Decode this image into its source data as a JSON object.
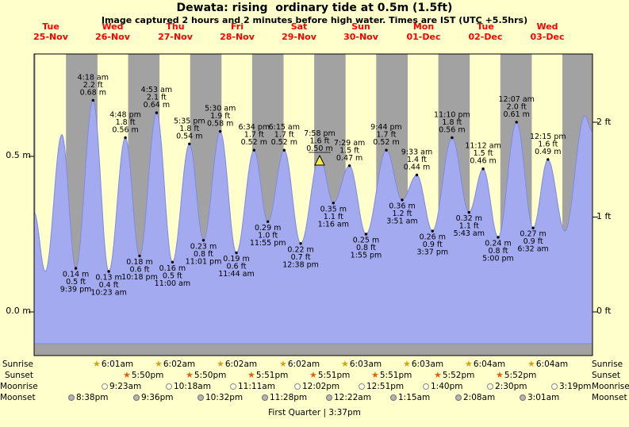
{
  "title": "Dewata: rising  ordinary tide at 0.5m (1.5ft)",
  "subtitle": "Image captured 2 hours and 2 minutes before high water. Times are IST (UTC +5.5hrs)",
  "axis": {
    "left": [
      "0.5 m",
      "0.0 m"
    ],
    "right": [
      "2 ft",
      "1 ft",
      "0 ft"
    ]
  },
  "colors": {
    "background": "#ffffcc",
    "night_band": "#a2a2a2",
    "day_band": "#ffffcc",
    "tide_fill": "#a3aaf0",
    "tide_stroke": "#7f8ae0",
    "date_label": "#ff0000",
    "current_marker": "#ffee33"
  },
  "chart_data": {
    "type": "area",
    "title": "Dewata: rising  ordinary tide at 0.5m (1.5ft)",
    "ylabel_left": "m",
    "ylabel_right": "ft",
    "ylim_m": [
      -0.1,
      0.93
    ],
    "y_ticks_m": [
      0.0,
      0.5
    ],
    "y_ticks_ft": [
      0,
      1,
      2
    ],
    "x_days": [
      {
        "weekday": "Tue",
        "date": "25-Nov"
      },
      {
        "weekday": "Wed",
        "date": "26-Nov"
      },
      {
        "weekday": "Thu",
        "date": "27-Nov"
      },
      {
        "weekday": "Fri",
        "date": "28-Nov"
      },
      {
        "weekday": "Sat",
        "date": "29-Nov"
      },
      {
        "weekday": "Sun",
        "date": "30-Nov"
      },
      {
        "weekday": "Mon",
        "date": "01-Dec"
      },
      {
        "weekday": "Tue",
        "date": "02-Dec"
      },
      {
        "weekday": "Wed",
        "date": "03-Dec"
      }
    ],
    "tide_events": [
      {
        "day": 0,
        "time": "5:30 am",
        "type": "start",
        "m": 0.32,
        "labeled": false
      },
      {
        "day": 0,
        "time": "9:50 am",
        "type": "low",
        "m": 0.13,
        "labeled": false
      },
      {
        "day": 0,
        "time": "4:15 pm",
        "type": "high",
        "m": 0.57,
        "labeled": false
      },
      {
        "day": 0,
        "time": "9:39 pm",
        "type": "low",
        "m": 0.14,
        "m_label": "0.14 m",
        "ft_label": "0.5 ft",
        "labeled": true
      },
      {
        "day": 1,
        "time": "4:18 am",
        "type": "high",
        "m": 0.68,
        "m_label": "0.68 m",
        "ft_label": "2.2 ft",
        "labeled": true
      },
      {
        "day": 1,
        "time": "10:23 am",
        "type": "low",
        "m": 0.13,
        "m_label": "0.13 m",
        "ft_label": "0.4 ft",
        "labeled": true
      },
      {
        "day": 1,
        "time": "4:48 pm",
        "type": "high",
        "m": 0.56,
        "m_label": "0.56 m",
        "ft_label": "1.8 ft",
        "labeled": true
      },
      {
        "day": 1,
        "time": "10:18 pm",
        "type": "low",
        "m": 0.18,
        "m_label": "0.18 m",
        "ft_label": "0.6 ft",
        "labeled": true
      },
      {
        "day": 2,
        "time": "4:53 am",
        "type": "high",
        "m": 0.64,
        "m_label": "0.64 m",
        "ft_label": "2.1 ft",
        "labeled": true
      },
      {
        "day": 2,
        "time": "11:00 am",
        "type": "low",
        "m": 0.16,
        "m_label": "0.16 m",
        "ft_label": "0.5 ft",
        "labeled": true
      },
      {
        "day": 2,
        "time": "5:35 pm",
        "type": "high",
        "m": 0.54,
        "m_label": "0.54 m",
        "ft_label": "1.8 ft",
        "labeled": true
      },
      {
        "day": 2,
        "time": "11:01 pm",
        "type": "low",
        "m": 0.23,
        "m_label": "0.23 m",
        "ft_label": "0.8 ft",
        "labeled": true
      },
      {
        "day": 3,
        "time": "5:30 am",
        "type": "high",
        "m": 0.58,
        "m_label": "0.58 m",
        "ft_label": "1.9 ft",
        "labeled": true
      },
      {
        "day": 3,
        "time": "11:44 am",
        "type": "low",
        "m": 0.19,
        "m_label": "0.19 m",
        "ft_label": "0.6 ft",
        "labeled": true
      },
      {
        "day": 3,
        "time": "6:34 pm",
        "type": "high",
        "m": 0.52,
        "m_label": "0.52 m",
        "ft_label": "1.7 ft",
        "labeled": true
      },
      {
        "day": 3,
        "time": "11:55 pm",
        "type": "low",
        "m": 0.29,
        "m_label": "0.29 m",
        "ft_label": "1.0 ft",
        "labeled": true
      },
      {
        "day": 4,
        "time": "6:15 am",
        "type": "high",
        "m": 0.52,
        "m_label": "0.52 m",
        "ft_label": "1.7 ft",
        "labeled": true
      },
      {
        "day": 4,
        "time": "12:38 pm",
        "type": "low",
        "m": 0.22,
        "m_label": "0.22 m",
        "ft_label": "0.7 ft",
        "labeled": true
      },
      {
        "day": 4,
        "time": "7:58 pm",
        "type": "high",
        "m": 0.5,
        "m_label": "0.50 m",
        "ft_label": "1.6 ft",
        "labeled": true,
        "current": true
      },
      {
        "day": 5,
        "time": "1:16 am",
        "type": "low",
        "m": 0.35,
        "m_label": "0.35 m",
        "ft_label": "1.1 ft",
        "labeled": true
      },
      {
        "day": 5,
        "time": "7:29 am",
        "type": "high",
        "m": 0.47,
        "m_label": "0.47 m",
        "ft_label": "1.5 ft",
        "labeled": true
      },
      {
        "day": 5,
        "time": "1:55 pm",
        "type": "low",
        "m": 0.25,
        "m_label": "0.25 m",
        "ft_label": "0.8 ft",
        "labeled": true
      },
      {
        "day": 5,
        "time": "9:44 pm",
        "type": "high",
        "m": 0.52,
        "m_label": "0.52 m",
        "ft_label": "1.7 ft",
        "labeled": true
      },
      {
        "day": 6,
        "time": "3:51 am",
        "type": "low",
        "m": 0.36,
        "m_label": "0.36 m",
        "ft_label": "1.2 ft",
        "labeled": true
      },
      {
        "day": 6,
        "time": "9:33 am",
        "type": "high",
        "m": 0.44,
        "m_label": "0.44 m",
        "ft_label": "1.4 ft",
        "labeled": true
      },
      {
        "day": 6,
        "time": "3:37 pm",
        "type": "low",
        "m": 0.26,
        "m_label": "0.26 m",
        "ft_label": "0.9 ft",
        "labeled": true
      },
      {
        "day": 6,
        "time": "11:10 pm",
        "type": "high",
        "m": 0.56,
        "m_label": "0.56 m",
        "ft_label": "1.8 ft",
        "labeled": true
      },
      {
        "day": 7,
        "time": "5:43 am",
        "type": "low",
        "m": 0.32,
        "m_label": "0.32 m",
        "ft_label": "1.1 ft",
        "labeled": true
      },
      {
        "day": 7,
        "time": "11:12 am",
        "type": "high",
        "m": 0.46,
        "m_label": "0.46 m",
        "ft_label": "1.5 ft",
        "labeled": true
      },
      {
        "day": 7,
        "time": "5:00 pm",
        "type": "low",
        "m": 0.24,
        "m_label": "0.24 m",
        "ft_label": "0.8 ft",
        "labeled": true
      },
      {
        "day": 8,
        "time": "12:07 am",
        "type": "high",
        "m": 0.61,
        "m_label": "0.61 m",
        "ft_label": "2.0 ft",
        "labeled": true
      },
      {
        "day": 8,
        "time": "6:32 am",
        "type": "low",
        "m": 0.27,
        "m_label": "0.27 m",
        "ft_label": "0.9 ft",
        "labeled": true
      },
      {
        "day": 8,
        "time": "12:15 pm",
        "type": "high",
        "m": 0.49,
        "m_label": "0.49 m",
        "ft_label": "1.6 ft",
        "labeled": true
      },
      {
        "day": 8,
        "time": "6:50 pm",
        "type": "low",
        "m": 0.26,
        "labeled": false
      },
      {
        "day": 9,
        "time": "2:30 am",
        "type": "high",
        "m": 0.63,
        "labeled": false
      },
      {
        "day": 9,
        "time": "5:30 am",
        "type": "end",
        "m": 0.58,
        "labeled": false
      }
    ],
    "current_marker": {
      "day": 4,
      "time": "7:58 pm",
      "m": 0.5
    }
  },
  "astro": {
    "row_labels": [
      "Sunrise",
      "Sunset",
      "Moonrise",
      "Moonset"
    ],
    "sunrise": [
      {
        "day": 1,
        "time": "6:01am"
      },
      {
        "day": 2,
        "time": "6:02am"
      },
      {
        "day": 3,
        "time": "6:02am"
      },
      {
        "day": 4,
        "time": "6:02am"
      },
      {
        "day": 5,
        "time": "6:03am"
      },
      {
        "day": 6,
        "time": "6:03am"
      },
      {
        "day": 7,
        "time": "6:04am"
      },
      {
        "day": 8,
        "time": "6:04am"
      }
    ],
    "sunset": [
      {
        "day": 1,
        "time": "5:50pm"
      },
      {
        "day": 2,
        "time": "5:50pm"
      },
      {
        "day": 3,
        "time": "5:51pm"
      },
      {
        "day": 4,
        "time": "5:51pm"
      },
      {
        "day": 5,
        "time": "5:51pm"
      },
      {
        "day": 6,
        "time": "5:52pm"
      },
      {
        "day": 7,
        "time": "5:52pm"
      }
    ],
    "moonrise": [
      {
        "day": 1,
        "time": "9:23am"
      },
      {
        "day": 2,
        "time": "10:18am"
      },
      {
        "day": 3,
        "time": "11:11am"
      },
      {
        "day": 4,
        "time": "12:02pm"
      },
      {
        "day": 5,
        "time": "12:51pm"
      },
      {
        "day": 6,
        "time": "1:40pm"
      },
      {
        "day": 7,
        "time": "2:30pm"
      },
      {
        "day": 8,
        "time": "3:19pm"
      }
    ],
    "moonset": [
      {
        "day": 0,
        "time": "8:38pm"
      },
      {
        "day": 1,
        "time": "9:36pm"
      },
      {
        "day": 2,
        "time": "10:32pm"
      },
      {
        "day": 3,
        "time": "11:28pm"
      },
      {
        "day": 5,
        "time": "12:22am"
      },
      {
        "day": 6,
        "time": "1:15am"
      },
      {
        "day": 7,
        "time": "2:08am"
      },
      {
        "day": 8,
        "time": "3:01am"
      }
    ],
    "moon_phase": "First Quarter | 3:37pm"
  }
}
